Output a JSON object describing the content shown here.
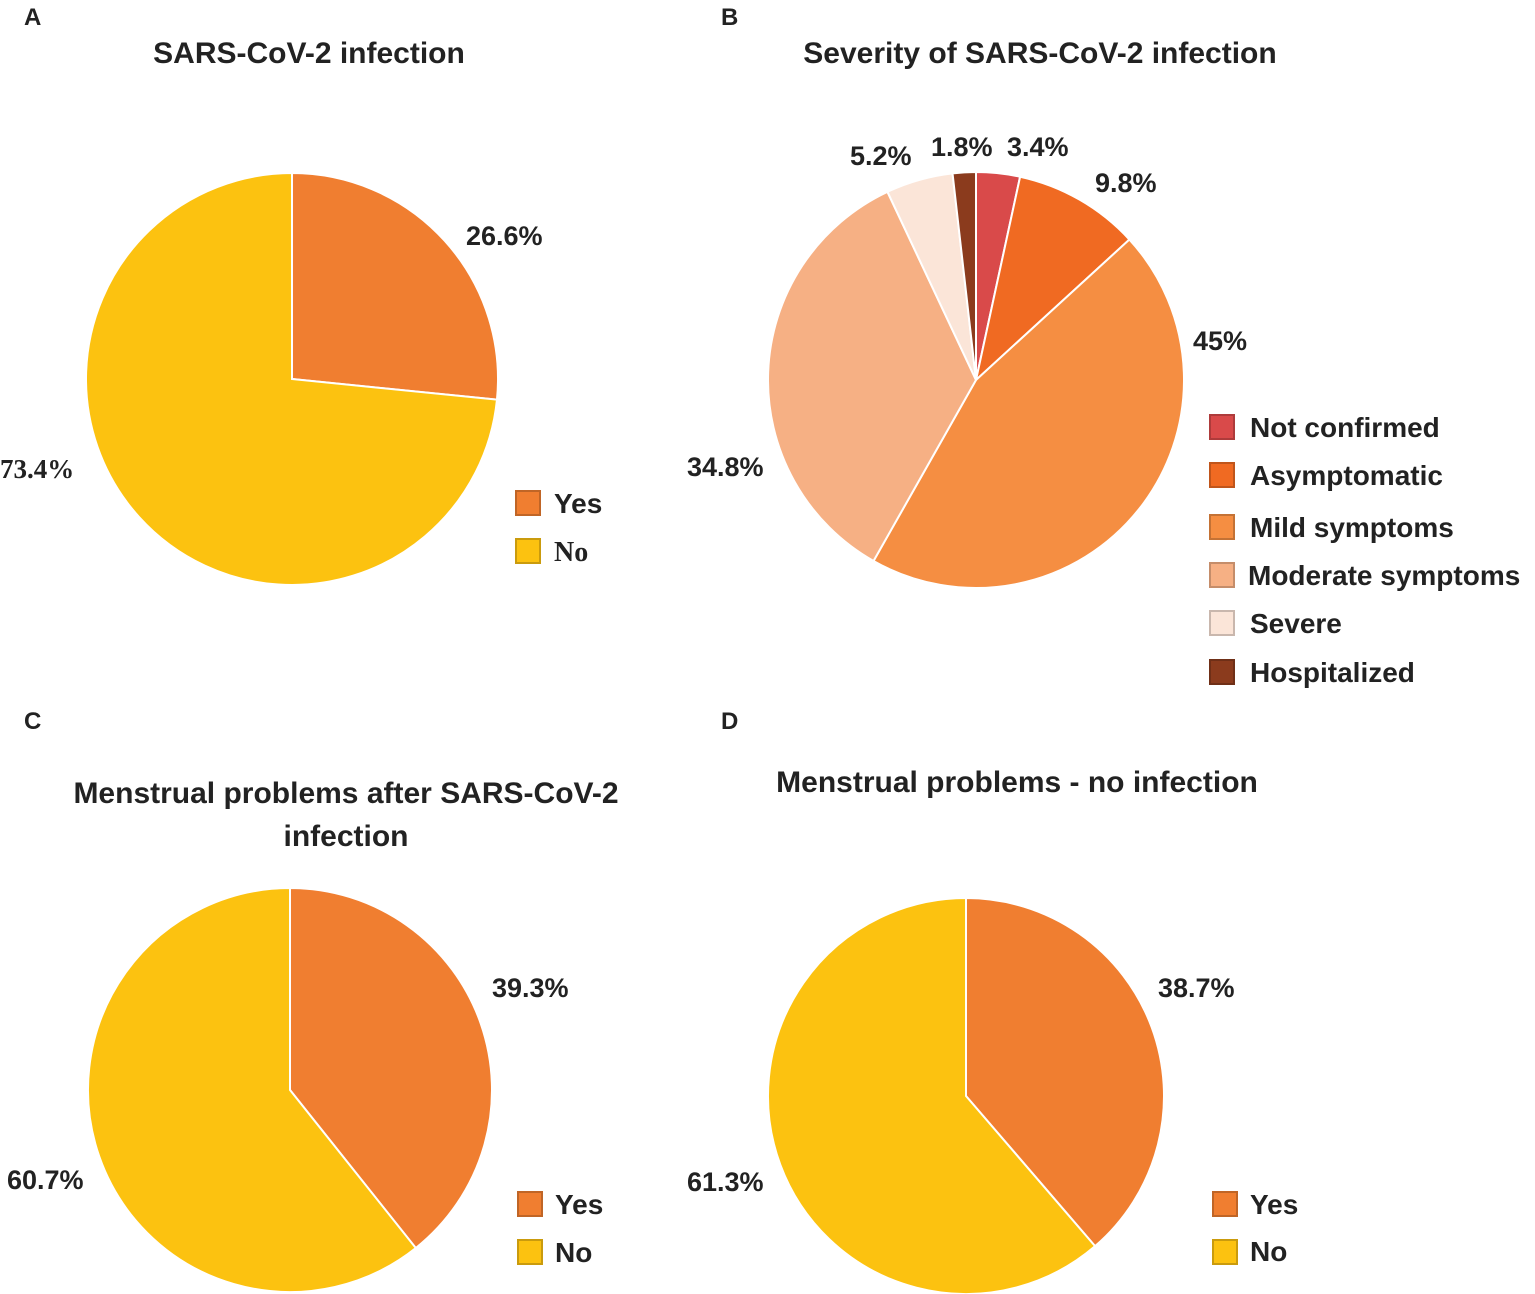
{
  "colors": {
    "yes": "#F07E30",
    "no": "#FCC210",
    "not_confirmed": "#D94A4A",
    "asymptomatic": "#F06A22",
    "mild_symptoms": "#F58E42",
    "moderate_symptoms": "#F6B084",
    "severe": "#FBE5D8",
    "hospitalized": "#8B3B1D"
  },
  "chart_data": [
    {
      "panel": "A",
      "type": "pie",
      "title": "SARS-CoV-2 infection",
      "slices": [
        {
          "name": "Yes",
          "value": 26.6,
          "label": "26.6%",
          "color_key": "yes"
        },
        {
          "name": "No",
          "value": 73.4,
          "label": "73.4%",
          "color_key": "no"
        }
      ],
      "legend": [
        "Yes",
        "No"
      ],
      "legend_position": "bottom-right"
    },
    {
      "panel": "B",
      "type": "pie",
      "title": "Severity of SARS-CoV-2 infection",
      "slices": [
        {
          "name": "Not confirmed",
          "value": 3.4,
          "label": "3.4%",
          "color_key": "not_confirmed"
        },
        {
          "name": "Asymptomatic",
          "value": 9.8,
          "label": "9.8%",
          "color_key": "asymptomatic"
        },
        {
          "name": "Mild symptoms",
          "value": 45,
          "label": "45%",
          "color_key": "mild_symptoms"
        },
        {
          "name": "Moderate symptoms",
          "value": 34.8,
          "label": "34.8%",
          "color_key": "moderate_symptoms"
        },
        {
          "name": "Severe",
          "value": 5.2,
          "label": "5.2%",
          "color_key": "severe"
        },
        {
          "name": "Hospitalized",
          "value": 1.8,
          "label": "1.8%",
          "color_key": "hospitalized"
        }
      ],
      "legend": [
        "Not confirmed",
        "Asymptomatic",
        "Mild symptoms",
        "Moderate symptoms",
        "Severe",
        "Hospitalized"
      ],
      "legend_position": "right"
    },
    {
      "panel": "C",
      "type": "pie",
      "title": "Menstrual problems after SARS-CoV-2 infection",
      "title_lines": [
        "Menstrual problems after SARS-CoV-2",
        "infection"
      ],
      "slices": [
        {
          "name": "Yes",
          "value": 39.3,
          "label": "39.3%",
          "color_key": "yes"
        },
        {
          "name": "No",
          "value": 60.7,
          "label": "60.7%",
          "color_key": "no"
        }
      ],
      "legend": [
        "Yes",
        "No"
      ],
      "legend_position": "bottom-right"
    },
    {
      "panel": "D",
      "type": "pie",
      "title": "Menstrual problems - no infection",
      "slices": [
        {
          "name": "Yes",
          "value": 38.7,
          "label": "38.7%",
          "color_key": "yes"
        },
        {
          "name": "No",
          "value": 61.3,
          "label": "61.3%",
          "color_key": "no"
        }
      ],
      "legend": [
        "Yes",
        "No"
      ],
      "legend_position": "bottom-right"
    }
  ]
}
